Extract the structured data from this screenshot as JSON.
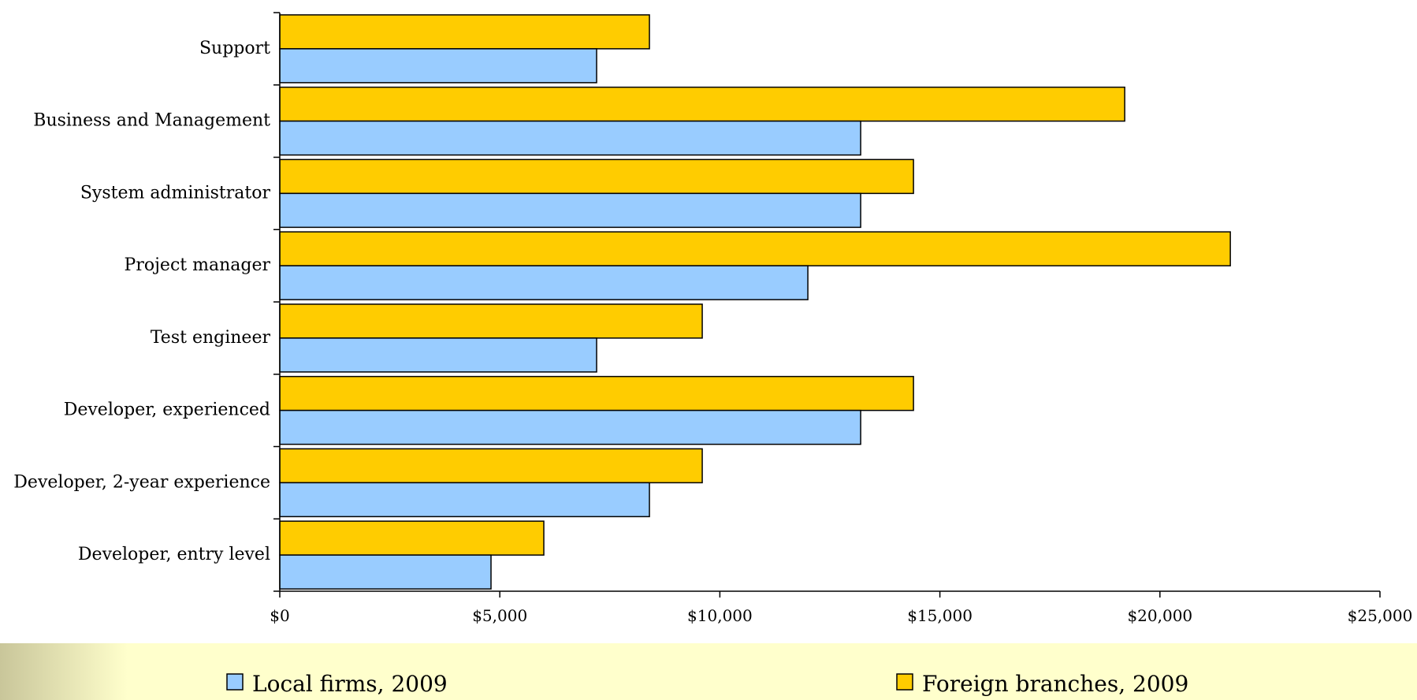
{
  "chart_data": {
    "type": "bar",
    "orientation": "horizontal",
    "title": "",
    "xlabel": "",
    "ylabel": "",
    "xlim": [
      0,
      25000
    ],
    "x_ticks": [
      0,
      5000,
      10000,
      15000,
      20000,
      25000
    ],
    "x_tick_labels": [
      "$0",
      "$5,000",
      "$10,000",
      "$15,000",
      "$20,000",
      "$25,000"
    ],
    "categories": [
      "Support",
      "Business and Management",
      "System administrator",
      "Project manager",
      "Test engineer",
      "Developer, experienced",
      "Developer, 2-year experience",
      "Developer, entry level"
    ],
    "series": [
      {
        "name": "Foreign branches, 2009",
        "color": "#FFCC00",
        "values": [
          8400,
          19200,
          14400,
          21600,
          9600,
          14400,
          9600,
          6000
        ]
      },
      {
        "name": "Local firms, 2009",
        "color": "#99CCFF",
        "values": [
          7200,
          13200,
          13200,
          12000,
          7200,
          13200,
          8400,
          4800
        ]
      }
    ],
    "grid": false,
    "legend_position": "bottom",
    "legend_order": [
      "Local firms, 2009",
      "Foreign branches, 2009"
    ],
    "legend_background": "#FFFFCC"
  }
}
